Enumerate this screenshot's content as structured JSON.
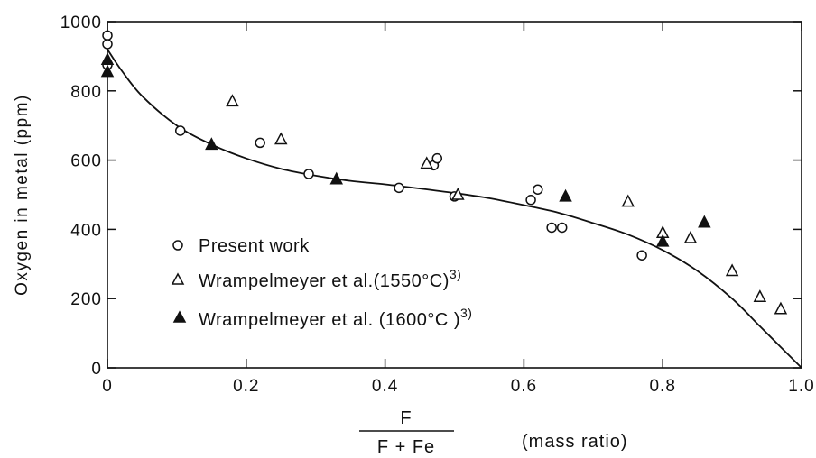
{
  "chart_data": {
    "type": "scatter",
    "title": "",
    "ylabel": "Oxygen in metal (ppm)",
    "xlabel_numerator": "F",
    "xlabel_denominator": "F + Fe",
    "xlabel_unit": "(mass ratio)",
    "xlim": [
      0,
      1.0
    ],
    "ylim": [
      0,
      1000
    ],
    "x_ticks": [
      0,
      0.2,
      0.4,
      0.6,
      0.8,
      1.0
    ],
    "x_tick_labels": [
      "0",
      "0.2",
      "0.4",
      "0.6",
      "0.8",
      "1.0"
    ],
    "y_ticks": [
      0,
      200,
      400,
      600,
      800,
      1000
    ],
    "y_tick_labels": [
      "0",
      "200",
      "400",
      "600",
      "800",
      "1000"
    ],
    "grid": false,
    "legend_position": "lower-left",
    "series": [
      {
        "name": "Present work",
        "marker": "open-circle",
        "x": [
          0,
          0,
          0,
          0.105,
          0.22,
          0.29,
          0.42,
          0.47,
          0.475,
          0.5,
          0.61,
          0.62,
          0.64,
          0.655,
          0.77
        ],
        "y": [
          960,
          935,
          875,
          685,
          650,
          560,
          520,
          585,
          605,
          495,
          485,
          515,
          405,
          405,
          325
        ]
      },
      {
        "name": "Wrampelmeyer et al.(1550°C)",
        "name_superscript": "3)",
        "marker": "open-triangle",
        "x": [
          0.18,
          0.25,
          0.46,
          0.505,
          0.75,
          0.8,
          0.84,
          0.9,
          0.94,
          0.97
        ],
        "y": [
          770,
          660,
          590,
          500,
          480,
          390,
          375,
          280,
          205,
          170
        ]
      },
      {
        "name": "Wrampelmeyer et al. (1600°C )",
        "name_superscript": "3)",
        "marker": "filled-triangle",
        "x": [
          0,
          0,
          0.15,
          0.33,
          0.66,
          0.8,
          0.86
        ],
        "y": [
          890,
          855,
          645,
          545,
          495,
          365,
          420
        ]
      }
    ],
    "fit_curve": {
      "x": [
        0,
        0.02,
        0.05,
        0.1,
        0.15,
        0.2,
        0.25,
        0.3,
        0.35,
        0.4,
        0.45,
        0.5,
        0.55,
        0.6,
        0.65,
        0.7,
        0.75,
        0.8,
        0.85,
        0.9,
        0.94,
        0.97,
        1.0
      ],
      "y": [
        920,
        860,
        785,
        700,
        645,
        605,
        575,
        555,
        540,
        530,
        518,
        505,
        490,
        470,
        448,
        418,
        385,
        340,
        280,
        200,
        120,
        60,
        0
      ]
    }
  }
}
